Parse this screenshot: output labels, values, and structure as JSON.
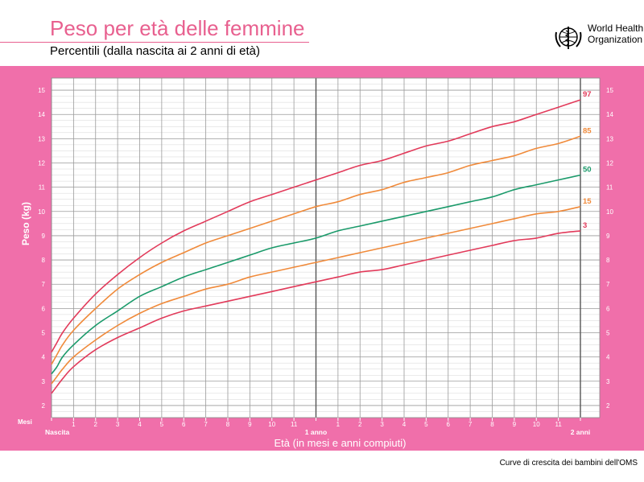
{
  "header": {
    "title": "Peso per età delle femmine",
    "subtitle": "Percentili (dalla nascita ai 2 anni di età)",
    "logo_line1": "World Health",
    "logo_line2": "Organization"
  },
  "footer": {
    "text": "Curve di crescita dei bambini dell'OMS"
  },
  "chart_data": {
    "type": "line",
    "title": "Peso per età delle femmine",
    "subtitle": "Percentili (dalla nascita ai 2 anni di età)",
    "xlabel": "Età (in mesi e anni compiuti)",
    "ylabel": "Peso (kg)",
    "x_unit_label": "Mesi",
    "xlim": [
      0,
      24
    ],
    "ylim": [
      1.5,
      15.5
    ],
    "x_ticks": [
      {
        "x": 0,
        "label": "Nascita"
      },
      {
        "x": 1,
        "label": "1"
      },
      {
        "x": 2,
        "label": "2"
      },
      {
        "x": 3,
        "label": "3"
      },
      {
        "x": 4,
        "label": "4"
      },
      {
        "x": 5,
        "label": "5"
      },
      {
        "x": 6,
        "label": "6"
      },
      {
        "x": 7,
        "label": "7"
      },
      {
        "x": 8,
        "label": "8"
      },
      {
        "x": 9,
        "label": "9"
      },
      {
        "x": 10,
        "label": "10"
      },
      {
        "x": 11,
        "label": "11"
      },
      {
        "x": 12,
        "label": "1 anno"
      },
      {
        "x": 13,
        "label": "1"
      },
      {
        "x": 14,
        "label": "2"
      },
      {
        "x": 15,
        "label": "3"
      },
      {
        "x": 16,
        "label": "4"
      },
      {
        "x": 17,
        "label": "5"
      },
      {
        "x": 18,
        "label": "6"
      },
      {
        "x": 19,
        "label": "7"
      },
      {
        "x": 20,
        "label": "8"
      },
      {
        "x": 21,
        "label": "9"
      },
      {
        "x": 22,
        "label": "10"
      },
      {
        "x": 23,
        "label": "11"
      },
      {
        "x": 24,
        "label": "2 anni"
      }
    ],
    "y_ticks": [
      2,
      3,
      4,
      5,
      6,
      7,
      8,
      9,
      10,
      11,
      12,
      13,
      14,
      15
    ],
    "grid": true,
    "x": [
      0,
      0.25,
      0.5,
      1,
      2,
      3,
      4,
      5,
      6,
      7,
      8,
      9,
      10,
      11,
      12,
      13,
      14,
      15,
      16,
      17,
      18,
      19,
      20,
      21,
      22,
      23,
      24
    ],
    "series": [
      {
        "name": "97",
        "color": "#e23a5a",
        "values": [
          4.2,
          4.6,
          5.0,
          5.6,
          6.6,
          7.4,
          8.1,
          8.7,
          9.2,
          9.6,
          10.0,
          10.4,
          10.7,
          11.0,
          11.3,
          11.6,
          11.9,
          12.1,
          12.4,
          12.7,
          12.9,
          13.2,
          13.5,
          13.7,
          14.0,
          14.3,
          14.6
        ]
      },
      {
        "name": "85",
        "color": "#f08a3a",
        "values": [
          3.7,
          4.1,
          4.5,
          5.1,
          6.0,
          6.8,
          7.4,
          7.9,
          8.3,
          8.7,
          9.0,
          9.3,
          9.6,
          9.9,
          10.2,
          10.4,
          10.7,
          10.9,
          11.2,
          11.4,
          11.6,
          11.9,
          12.1,
          12.3,
          12.6,
          12.8,
          13.1
        ]
      },
      {
        "name": "50",
        "color": "#1a9a6a",
        "values": [
          3.3,
          3.6,
          4.0,
          4.5,
          5.3,
          5.9,
          6.5,
          6.9,
          7.3,
          7.6,
          7.9,
          8.2,
          8.5,
          8.7,
          8.9,
          9.2,
          9.4,
          9.6,
          9.8,
          10.0,
          10.2,
          10.4,
          10.6,
          10.9,
          11.1,
          11.3,
          11.5
        ]
      },
      {
        "name": "15",
        "color": "#f08a3a",
        "values": [
          2.9,
          3.2,
          3.5,
          4.0,
          4.7,
          5.3,
          5.8,
          6.2,
          6.5,
          6.8,
          7.0,
          7.3,
          7.5,
          7.7,
          7.9,
          8.1,
          8.3,
          8.5,
          8.7,
          8.9,
          9.1,
          9.3,
          9.5,
          9.7,
          9.9,
          10.0,
          10.2
        ]
      },
      {
        "name": "3",
        "color": "#e23a5a",
        "values": [
          2.5,
          2.8,
          3.1,
          3.6,
          4.3,
          4.8,
          5.2,
          5.6,
          5.9,
          6.1,
          6.3,
          6.5,
          6.7,
          6.9,
          7.1,
          7.3,
          7.5,
          7.6,
          7.8,
          8.0,
          8.2,
          8.4,
          8.6,
          8.8,
          8.9,
          9.1,
          9.2
        ]
      }
    ]
  }
}
